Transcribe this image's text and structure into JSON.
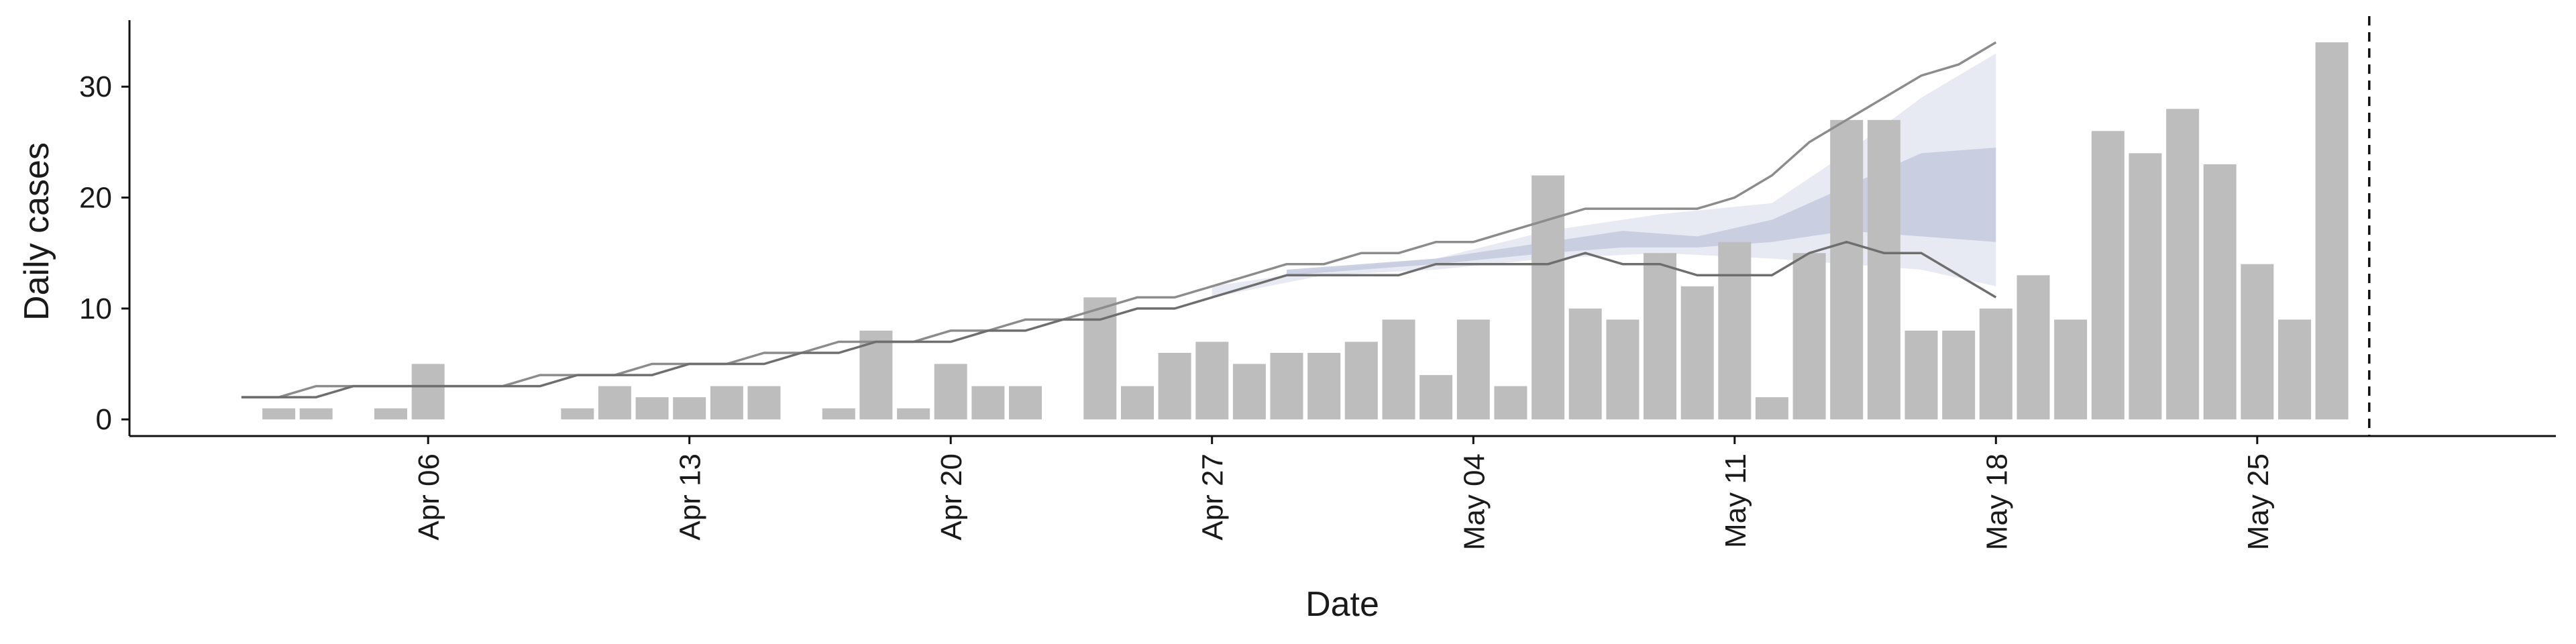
{
  "chart_data": {
    "type": "bar",
    "xlabel": "Date",
    "ylabel": "Daily cases",
    "ylim": [
      -1.5,
      36
    ],
    "xlim": [
      "2020-03-29",
      "2020-06-02"
    ],
    "y_ticks": [
      0,
      10,
      20,
      30
    ],
    "x_ticks": [
      {
        "date": "2020-04-06",
        "label": "Apr 06"
      },
      {
        "date": "2020-04-13",
        "label": "Apr 13"
      },
      {
        "date": "2020-04-20",
        "label": "Apr 20"
      },
      {
        "date": "2020-04-27",
        "label": "Apr 27"
      },
      {
        "date": "2020-05-04",
        "label": "May 04"
      },
      {
        "date": "2020-05-11",
        "label": "May 11"
      },
      {
        "date": "2020-05-18",
        "label": "May 18"
      },
      {
        "date": "2020-05-25",
        "label": "May 25"
      }
    ],
    "bar_color": "#bdbdbd",
    "bars": [
      {
        "date": "2020-04-02",
        "value": 1
      },
      {
        "date": "2020-04-03",
        "value": 1
      },
      {
        "date": "2020-04-05",
        "value": 1
      },
      {
        "date": "2020-04-06",
        "value": 5
      },
      {
        "date": "2020-04-10",
        "value": 1
      },
      {
        "date": "2020-04-11",
        "value": 3
      },
      {
        "date": "2020-04-12",
        "value": 2
      },
      {
        "date": "2020-04-13",
        "value": 2
      },
      {
        "date": "2020-04-14",
        "value": 3
      },
      {
        "date": "2020-04-15",
        "value": 3
      },
      {
        "date": "2020-04-17",
        "value": 1
      },
      {
        "date": "2020-04-18",
        "value": 8
      },
      {
        "date": "2020-04-19",
        "value": 1
      },
      {
        "date": "2020-04-20",
        "value": 5
      },
      {
        "date": "2020-04-21",
        "value": 3
      },
      {
        "date": "2020-04-22",
        "value": 3
      },
      {
        "date": "2020-04-24",
        "value": 11
      },
      {
        "date": "2020-04-25",
        "value": 3
      },
      {
        "date": "2020-04-26",
        "value": 6
      },
      {
        "date": "2020-04-27",
        "value": 7
      },
      {
        "date": "2020-04-28",
        "value": 5
      },
      {
        "date": "2020-04-29",
        "value": 6
      },
      {
        "date": "2020-04-30",
        "value": 6
      },
      {
        "date": "2020-05-01",
        "value": 7
      },
      {
        "date": "2020-05-02",
        "value": 9
      },
      {
        "date": "2020-05-03",
        "value": 4
      },
      {
        "date": "2020-05-04",
        "value": 9
      },
      {
        "date": "2020-05-05",
        "value": 3
      },
      {
        "date": "2020-05-06",
        "value": 22
      },
      {
        "date": "2020-05-07",
        "value": 10
      },
      {
        "date": "2020-05-08",
        "value": 9
      },
      {
        "date": "2020-05-09",
        "value": 15
      },
      {
        "date": "2020-05-10",
        "value": 12
      },
      {
        "date": "2020-05-11",
        "value": 16
      },
      {
        "date": "2020-05-12",
        "value": 2
      },
      {
        "date": "2020-05-13",
        "value": 15
      },
      {
        "date": "2020-05-14",
        "value": 27
      },
      {
        "date": "2020-05-15",
        "value": 27
      },
      {
        "date": "2020-05-16",
        "value": 8
      },
      {
        "date": "2020-05-17",
        "value": 8
      },
      {
        "date": "2020-05-18",
        "value": 10
      },
      {
        "date": "2020-05-19",
        "value": 13
      },
      {
        "date": "2020-05-20",
        "value": 9
      },
      {
        "date": "2020-05-21",
        "value": 26
      },
      {
        "date": "2020-05-22",
        "value": 24
      },
      {
        "date": "2020-05-23",
        "value": 28
      },
      {
        "date": "2020-05-24",
        "value": 23
      },
      {
        "date": "2020-05-25",
        "value": 14
      },
      {
        "date": "2020-05-26",
        "value": 9
      },
      {
        "date": "2020-05-27",
        "value": 34
      }
    ],
    "upper_line": {
      "color": "#8c8c8c",
      "points": [
        {
          "date": "2020-04-01",
          "value": 2
        },
        {
          "date": "2020-04-02",
          "value": 2
        },
        {
          "date": "2020-04-03",
          "value": 3
        },
        {
          "date": "2020-04-04",
          "value": 3
        },
        {
          "date": "2020-04-05",
          "value": 3
        },
        {
          "date": "2020-04-06",
          "value": 3
        },
        {
          "date": "2020-04-07",
          "value": 3
        },
        {
          "date": "2020-04-08",
          "value": 3
        },
        {
          "date": "2020-04-09",
          "value": 4
        },
        {
          "date": "2020-04-10",
          "value": 4
        },
        {
          "date": "2020-04-11",
          "value": 4
        },
        {
          "date": "2020-04-12",
          "value": 5
        },
        {
          "date": "2020-04-13",
          "value": 5
        },
        {
          "date": "2020-04-14",
          "value": 5
        },
        {
          "date": "2020-04-15",
          "value": 6
        },
        {
          "date": "2020-04-16",
          "value": 6
        },
        {
          "date": "2020-04-17",
          "value": 7
        },
        {
          "date": "2020-04-18",
          "value": 7
        },
        {
          "date": "2020-04-19",
          "value": 7
        },
        {
          "date": "2020-04-20",
          "value": 8
        },
        {
          "date": "2020-04-21",
          "value": 8
        },
        {
          "date": "2020-04-22",
          "value": 9
        },
        {
          "date": "2020-04-23",
          "value": 9
        },
        {
          "date": "2020-04-24",
          "value": 10
        },
        {
          "date": "2020-04-25",
          "value": 11
        },
        {
          "date": "2020-04-26",
          "value": 11
        },
        {
          "date": "2020-04-27",
          "value": 12
        },
        {
          "date": "2020-04-28",
          "value": 13
        },
        {
          "date": "2020-04-29",
          "value": 14
        },
        {
          "date": "2020-04-30",
          "value": 14
        },
        {
          "date": "2020-05-01",
          "value": 15
        },
        {
          "date": "2020-05-02",
          "value": 15
        },
        {
          "date": "2020-05-03",
          "value": 16
        },
        {
          "date": "2020-05-04",
          "value": 16
        },
        {
          "date": "2020-05-05",
          "value": 17
        },
        {
          "date": "2020-05-06",
          "value": 18
        },
        {
          "date": "2020-05-07",
          "value": 19
        },
        {
          "date": "2020-05-08",
          "value": 19
        },
        {
          "date": "2020-05-09",
          "value": 19
        },
        {
          "date": "2020-05-10",
          "value": 19
        },
        {
          "date": "2020-05-11",
          "value": 20
        },
        {
          "date": "2020-05-12",
          "value": 22
        },
        {
          "date": "2020-05-13",
          "value": 25
        },
        {
          "date": "2020-05-14",
          "value": 27
        },
        {
          "date": "2020-05-15",
          "value": 29
        },
        {
          "date": "2020-05-16",
          "value": 31
        },
        {
          "date": "2020-05-17",
          "value": 32
        },
        {
          "date": "2020-05-18",
          "value": 34
        }
      ]
    },
    "lower_line": {
      "color": "#6e6e6e",
      "points": [
        {
          "date": "2020-04-01",
          "value": 2
        },
        {
          "date": "2020-04-02",
          "value": 2
        },
        {
          "date": "2020-04-03",
          "value": 2
        },
        {
          "date": "2020-04-04",
          "value": 3
        },
        {
          "date": "2020-04-05",
          "value": 3
        },
        {
          "date": "2020-04-06",
          "value": 3
        },
        {
          "date": "2020-04-07",
          "value": 3
        },
        {
          "date": "2020-04-08",
          "value": 3
        },
        {
          "date": "2020-04-09",
          "value": 3
        },
        {
          "date": "2020-04-10",
          "value": 4
        },
        {
          "date": "2020-04-11",
          "value": 4
        },
        {
          "date": "2020-04-12",
          "value": 4
        },
        {
          "date": "2020-04-13",
          "value": 5
        },
        {
          "date": "2020-04-14",
          "value": 5
        },
        {
          "date": "2020-04-15",
          "value": 5
        },
        {
          "date": "2020-04-16",
          "value": 6
        },
        {
          "date": "2020-04-17",
          "value": 6
        },
        {
          "date": "2020-04-18",
          "value": 7
        },
        {
          "date": "2020-04-19",
          "value": 7
        },
        {
          "date": "2020-04-20",
          "value": 7
        },
        {
          "date": "2020-04-21",
          "value": 8
        },
        {
          "date": "2020-04-22",
          "value": 8
        },
        {
          "date": "2020-04-23",
          "value": 9
        },
        {
          "date": "2020-04-24",
          "value": 9
        },
        {
          "date": "2020-04-25",
          "value": 10
        },
        {
          "date": "2020-04-26",
          "value": 10
        },
        {
          "date": "2020-04-27",
          "value": 11
        },
        {
          "date": "2020-04-28",
          "value": 12
        },
        {
          "date": "2020-04-29",
          "value": 13
        },
        {
          "date": "2020-04-30",
          "value": 13
        },
        {
          "date": "2020-05-01",
          "value": 13
        },
        {
          "date": "2020-05-02",
          "value": 13
        },
        {
          "date": "2020-05-03",
          "value": 14
        },
        {
          "date": "2020-05-04",
          "value": 14
        },
        {
          "date": "2020-05-05",
          "value": 14
        },
        {
          "date": "2020-05-06",
          "value": 14
        },
        {
          "date": "2020-05-07",
          "value": 15
        },
        {
          "date": "2020-05-08",
          "value": 14
        },
        {
          "date": "2020-05-09",
          "value": 14
        },
        {
          "date": "2020-05-10",
          "value": 13
        },
        {
          "date": "2020-05-11",
          "value": 13
        },
        {
          "date": "2020-05-12",
          "value": 13
        },
        {
          "date": "2020-05-13",
          "value": 15
        },
        {
          "date": "2020-05-14",
          "value": 16
        },
        {
          "date": "2020-05-15",
          "value": 15
        },
        {
          "date": "2020-05-16",
          "value": 15
        },
        {
          "date": "2020-05-17",
          "value": 13
        },
        {
          "date": "2020-05-18",
          "value": 11
        }
      ]
    },
    "outer_band": {
      "color": "#e3e6f0",
      "points": [
        {
          "date": "2020-04-27",
          "lower": 11,
          "upper": 12
        },
        {
          "date": "2020-04-30",
          "lower": 13,
          "upper": 13.5
        },
        {
          "date": "2020-05-03",
          "lower": 13.5,
          "upper": 14.5
        },
        {
          "date": "2020-05-06",
          "lower": 14.5,
          "upper": 17
        },
        {
          "date": "2020-05-09",
          "lower": 15,
          "upper": 18.5
        },
        {
          "date": "2020-05-12",
          "lower": 14.5,
          "upper": 19.5
        },
        {
          "date": "2020-05-14",
          "lower": 14,
          "upper": 24
        },
        {
          "date": "2020-05-16",
          "lower": 13.5,
          "upper": 29
        },
        {
          "date": "2020-05-18",
          "lower": 12,
          "upper": 33
        }
      ]
    },
    "inner_band": {
      "color": "#c3c9de",
      "points": [
        {
          "date": "2020-04-29",
          "lower": 13,
          "upper": 13.5
        },
        {
          "date": "2020-05-03",
          "lower": 14,
          "upper": 14.5
        },
        {
          "date": "2020-05-06",
          "lower": 15,
          "upper": 16
        },
        {
          "date": "2020-05-08",
          "lower": 15.5,
          "upper": 17
        },
        {
          "date": "2020-05-10",
          "lower": 15.5,
          "upper": 16.5
        },
        {
          "date": "2020-05-12",
          "lower": 16,
          "upper": 18
        },
        {
          "date": "2020-05-14",
          "lower": 17,
          "upper": 21
        },
        {
          "date": "2020-05-16",
          "lower": 16.5,
          "upper": 24
        },
        {
          "date": "2020-05-18",
          "lower": 16,
          "upper": 24.5
        }
      ]
    },
    "vline": {
      "date": "2020-05-28",
      "style": "dashed",
      "color": "#111111"
    },
    "grid": false,
    "legend": "none"
  }
}
